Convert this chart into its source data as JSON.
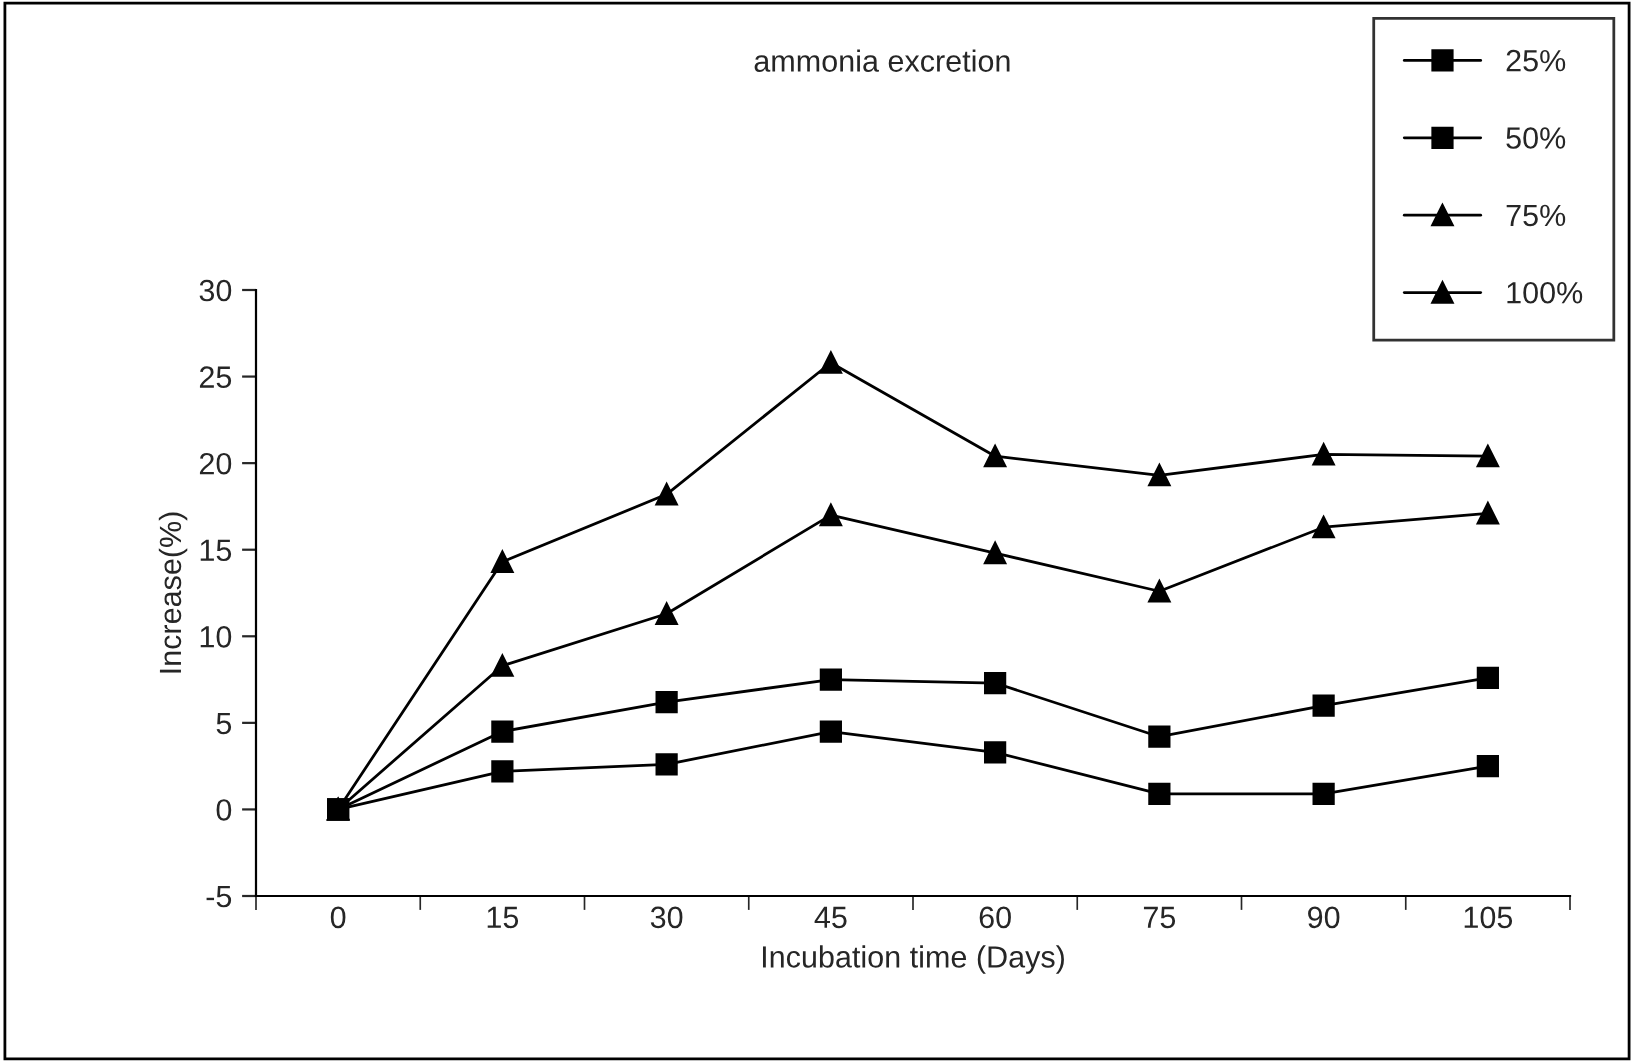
{
  "chart_data": {
    "type": "line",
    "title": "ammonia excretion",
    "xlabel": "Incubation time (Days)",
    "ylabel": "Increase(%)",
    "categories": [
      "0",
      "15",
      "30",
      "45",
      "60",
      "75",
      "90",
      "105"
    ],
    "ylim": [
      -5,
      30
    ],
    "yticks": [
      -5,
      0,
      5,
      10,
      15,
      20,
      25,
      30
    ],
    "grid": false,
    "legend": "top right",
    "series": [
      {
        "name": "25%",
        "color": "#000000",
        "marker": "square",
        "values": [
          0,
          2.2,
          2.6,
          4.5,
          3.3,
          0.9,
          0.9,
          2.5
        ]
      },
      {
        "name": "50%",
        "color": "#000000",
        "marker": "square",
        "values": [
          0,
          4.5,
          6.2,
          7.5,
          7.3,
          4.2,
          6.0,
          7.6
        ]
      },
      {
        "name": "75%",
        "color": "#000000",
        "marker": "triangle",
        "values": [
          0,
          8.3,
          11.3,
          17.0,
          14.8,
          12.6,
          16.3,
          17.1
        ]
      },
      {
        "name": "100%",
        "color": "#000000",
        "marker": "triangle",
        "values": [
          0,
          14.3,
          18.2,
          25.8,
          20.4,
          19.3,
          20.5,
          20.4
        ]
      }
    ]
  }
}
